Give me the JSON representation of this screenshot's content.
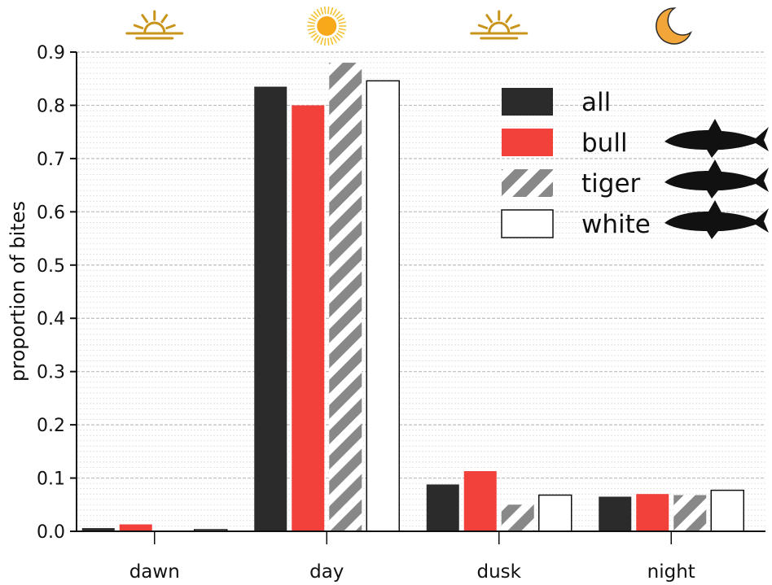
{
  "chart_data": {
    "type": "bar",
    "title": "",
    "xlabel": "",
    "ylabel": "proportion of bites",
    "ylim": [
      0,
      0.9
    ],
    "yticks": [
      "0.0",
      "0.1",
      "0.2",
      "0.3",
      "0.4",
      "0.5",
      "0.6",
      "0.7",
      "0.8",
      "0.9"
    ],
    "categories": [
      "dawn",
      "day",
      "dusk",
      "night"
    ],
    "category_icons": [
      "sunrise-icon",
      "sun-icon",
      "sunset-icon",
      "moon-icon"
    ],
    "grid": true,
    "legend_position": "top-right",
    "series": [
      {
        "name": "all",
        "color": "#2b2b2b",
        "pattern": "solid",
        "icon": "",
        "values": [
          0.006,
          0.835,
          0.088,
          0.065
        ]
      },
      {
        "name": "bull",
        "color": "#f2403a",
        "pattern": "solid",
        "icon": "bull-shark-icon",
        "values": [
          0.013,
          0.8,
          0.113,
          0.07
        ]
      },
      {
        "name": "tiger",
        "color": "#888888",
        "pattern": "diagonal-stripes",
        "icon": "tiger-shark-icon",
        "values": [
          0.0,
          0.88,
          0.05,
          0.068
        ]
      },
      {
        "name": "white",
        "color": "#ffffff",
        "pattern": "outline",
        "icon": "white-shark-icon",
        "values": [
          0.003,
          0.846,
          0.068,
          0.077
        ]
      }
    ]
  }
}
